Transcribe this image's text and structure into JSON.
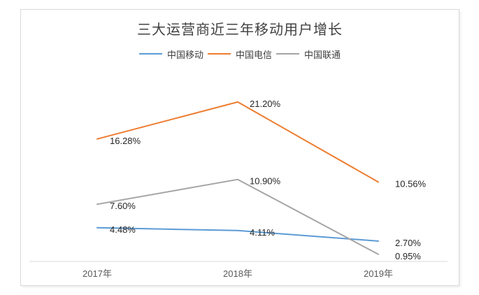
{
  "window": {
    "background": "#ffffff"
  },
  "chart_data": {
    "type": "line",
    "title": "三大运营商近三年移动用户增长",
    "categories": [
      "2017年",
      "2018年",
      "2019年"
    ],
    "series": [
      {
        "name": "中国移动",
        "color": "#5B9BD5",
        "values": [
          4.48,
          4.11,
          2.7
        ],
        "labels": [
          "4.48%",
          "4.11%",
          "2.70%"
        ]
      },
      {
        "name": "中国电信",
        "color": "#ED7D31",
        "values": [
          16.28,
          21.2,
          10.56
        ],
        "labels": [
          "16.28%",
          "21.20%",
          "10.56%"
        ]
      },
      {
        "name": "中国联通",
        "color": "#A5A5A5",
        "values": [
          7.6,
          10.9,
          0.95
        ],
        "labels": [
          "7.60%",
          "10.90%",
          "0.95%"
        ]
      }
    ],
    "xlabel": "",
    "ylabel": "",
    "ylim": [
      0,
      25
    ],
    "grid": false,
    "legend_position": "top",
    "data_labels": true
  },
  "style": {
    "title_color": "#404040",
    "data_label_color": "#262626",
    "tick_label_color": "#595959",
    "axis_line_color": "#d9d9d9",
    "frame_border_color": "#d9d9d9"
  }
}
